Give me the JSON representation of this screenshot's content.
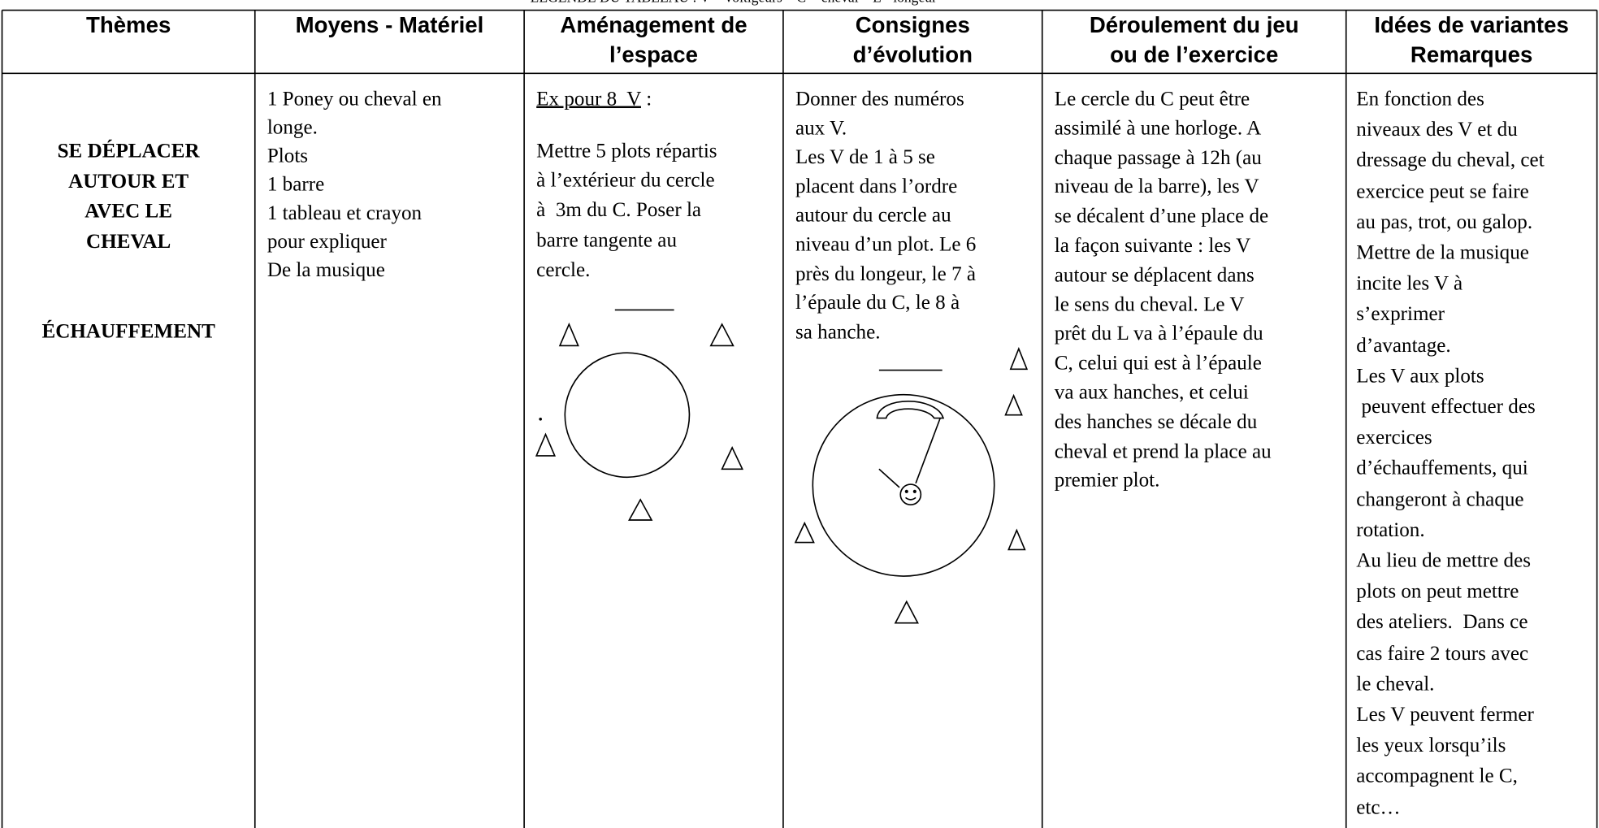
{
  "legend": "LÉGENDE DU TABLEAU : V = voltigeurs – C = cheval – L= longeur",
  "table": {
    "headers": [
      [
        "Thèmes"
      ],
      [
        "Moyens - Matériel"
      ],
      [
        "Aménagement de",
        "l’espace"
      ],
      [
        "Consignes",
        "d’évolution"
      ],
      [
        "Déroulement du jeu",
        "ou de l’exercice"
      ],
      [
        "Idées de variantes",
        "Remarques"
      ]
    ],
    "row": {
      "theme": [
        "SE DÉPLACER",
        "AUTOUR ET",
        "AVEC LE",
        "CHEVAL"
      ],
      "phase": "ÉCHAUFFEMENT",
      "materiel": [
        "1 Poney ou cheval en",
        "longe.",
        "Plots",
        "1 barre",
        "1 tableau et crayon",
        "pour expliquer",
        "De la musique"
      ],
      "amenagement_example": {
        "label": "Ex pour 8  V",
        "colon": ":"
      },
      "amenagement": [
        "Mettre 5 plots répartis",
        "à l’extérieur du cercle",
        "à  3m du C. Poser la",
        "barre tangente au",
        "cercle."
      ],
      "consignes": [
        "Donner des numéros",
        "aux V.",
        "Les V de 1 à 5 se",
        "placent dans l’ordre",
        "autour du cercle au",
        "niveau d’un plot. Le 6",
        "près du longeur, le 7 à",
        "l’épaule du C, le 8 à",
        "sa hanche."
      ],
      "deroulement": [
        "Le cercle du C peut être",
        "assimilé à une horloge. A",
        "chaque passage à 12h (au",
        "niveau de la barre), les V",
        "se décalent d’une place de",
        "la façon suivante : les V",
        "autour se déplacent dans",
        "le sens du cheval. Le V",
        "prêt du L va à l’épaule du",
        "C, celui qui est à l’épaule",
        "va aux hanches, et celui",
        "des hanches se décale du",
        "cheval et prend la place au",
        "premier plot."
      ],
      "remarques": [
        "En fonction des",
        "niveaux des V et du",
        "dressage du cheval, cet",
        "exercice peut se faire",
        "au pas, trot, ou galop.",
        "Mettre de la musique",
        "incite les V à",
        "s’exprimer",
        "d’avantage.",
        "Les V aux plots",
        " peuvent effectuer des",
        "exercices",
        "d’échauffements, qui",
        "changeront à chaque",
        "rotation.",
        "Au lieu de mettre des",
        "plots on peut mettre",
        "des ateliers.  Dans ce",
        "cas faire 2 tours avec",
        "le cheval.",
        "Les V peuvent fermer",
        "les yeux lorsqu’ils",
        "accompagnent le C,",
        "etc…"
      ]
    }
  }
}
